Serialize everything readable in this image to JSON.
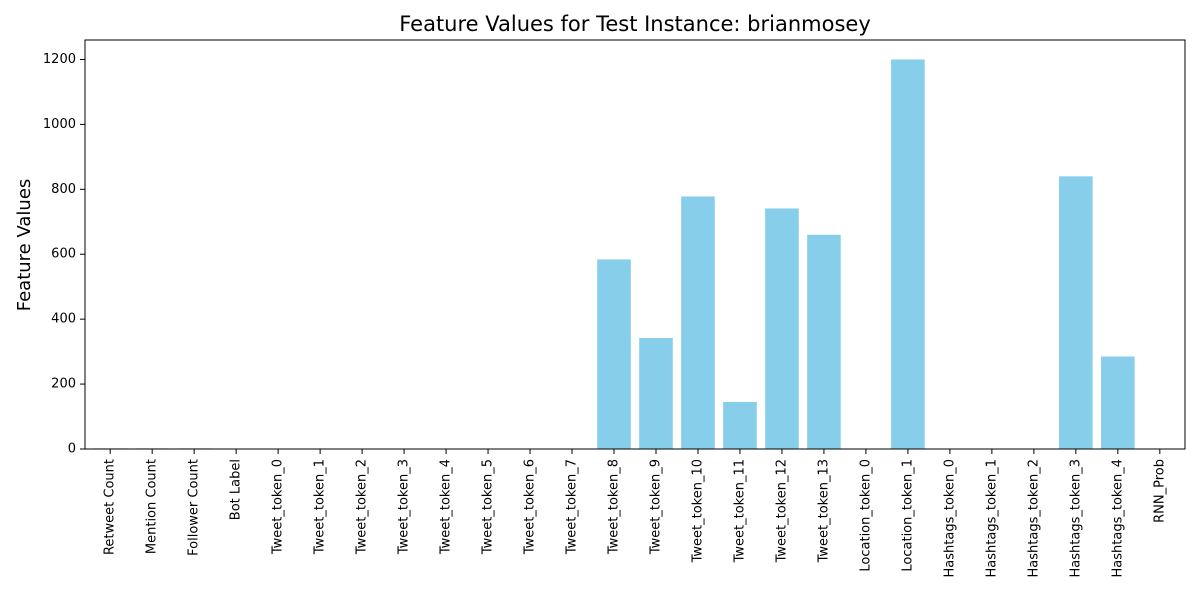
{
  "chart_data": {
    "type": "bar",
    "title": "Feature Values for Test Instance: brianmosey",
    "xlabel": "",
    "ylabel": "Feature Values",
    "ylim": [
      0,
      1260
    ],
    "yticks": [
      0,
      200,
      400,
      600,
      800,
      1000,
      1200
    ],
    "grid": false,
    "bar_color": "#87ceeb",
    "categories": [
      "Retweet Count",
      "Mention Count",
      "Follower Count",
      "Bot Label",
      "Tweet_token_0",
      "Tweet_token_1",
      "Tweet_token_2",
      "Tweet_token_3",
      "Tweet_token_4",
      "Tweet_token_5",
      "Tweet_token_6",
      "Tweet_token_7",
      "Tweet_token_8",
      "Tweet_token_9",
      "Tweet_token_10",
      "Tweet_token_11",
      "Tweet_token_12",
      "Tweet_token_13",
      "Location_token_0",
      "Location_token_1",
      "Hashtags_token_0",
      "Hashtags_token_1",
      "Hashtags_token_2",
      "Hashtags_token_3",
      "Hashtags_token_4",
      "RNN_Prob"
    ],
    "values": [
      2,
      2,
      2,
      0,
      0,
      0,
      0,
      0,
      0,
      0,
      0,
      0,
      584,
      342,
      778,
      145,
      741,
      660,
      0,
      1200,
      0,
      0,
      0,
      840,
      285,
      1
    ]
  }
}
